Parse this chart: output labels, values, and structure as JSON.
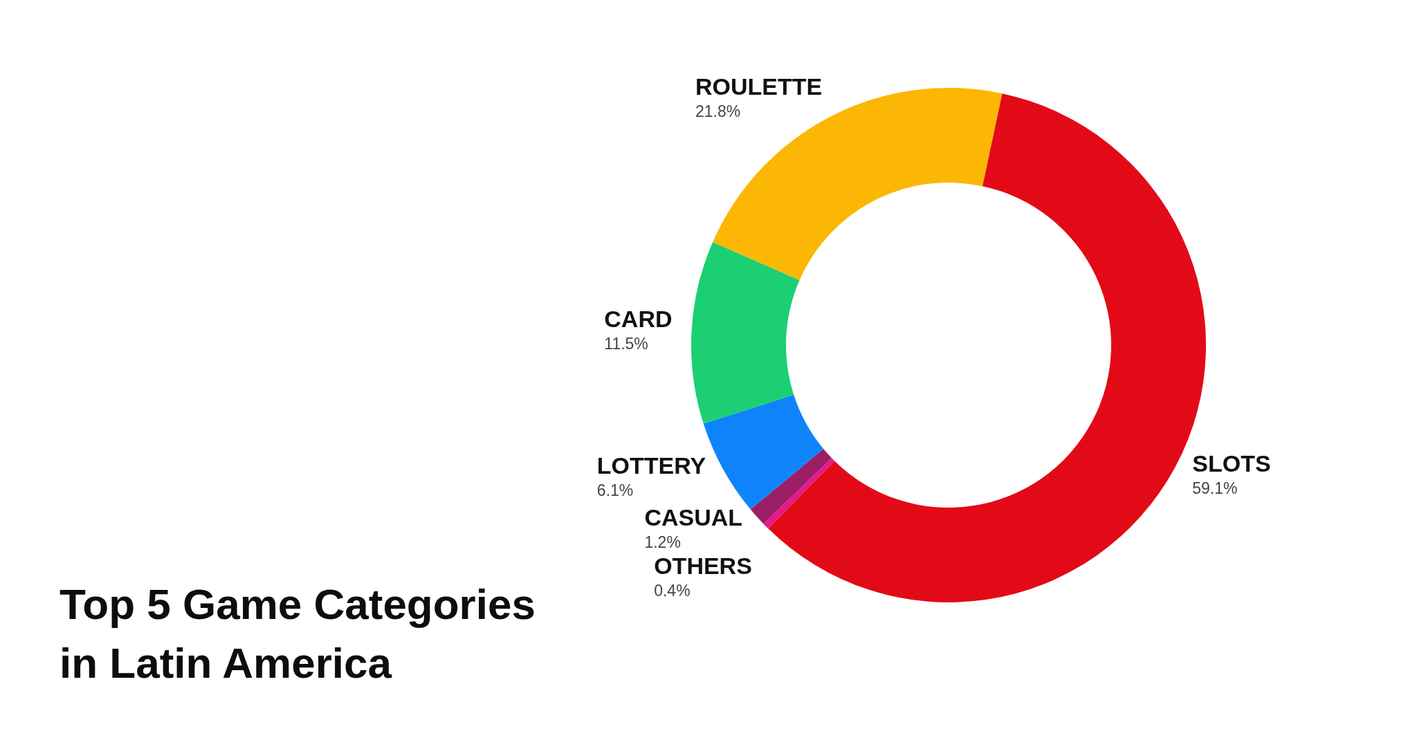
{
  "chart_data": {
    "type": "donut",
    "title": "Top 5 Game Categories in Latin America",
    "categories": [
      "SLOTS",
      "OTHERS",
      "CASUAL",
      "LOTTERY",
      "CARD",
      "ROULETTE"
    ],
    "values": [
      59.1,
      0.4,
      1.2,
      6.1,
      11.5,
      21.8
    ],
    "colors": [
      "#e30a17",
      "#e21a8c",
      "#9c1e64",
      "#0f84fa",
      "#1ccf73",
      "#fbb703"
    ],
    "value_labels": [
      "59.1%",
      "0.4%",
      "1.2%",
      "6.1%",
      "11.5%",
      "21.8%"
    ]
  }
}
